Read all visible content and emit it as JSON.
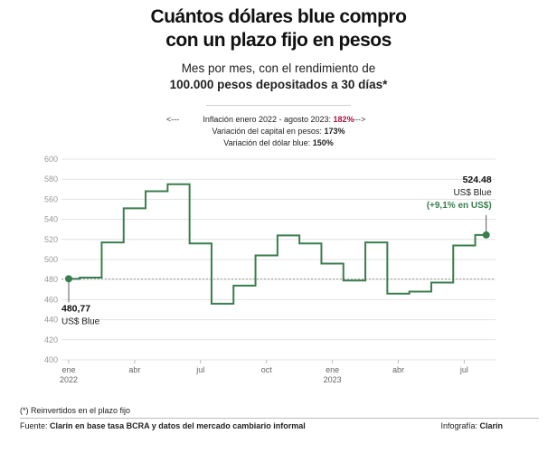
{
  "header": {
    "title_line1": "Cuántos dólares blue compro",
    "title_line2": "con un plazo fijo en pesos",
    "subtitle_line1": "Mes por mes, con el rendimiento de",
    "subtitle_line2": "100.000 pesos depositados a 30 días*"
  },
  "stats": {
    "arrow_left": "<---",
    "arrow_right": "--->",
    "inflation_label": "Inflación enero 2022 - agosto 2023:",
    "inflation_value": "182%",
    "capital_label": "Variación del capital en pesos:",
    "capital_value": "173%",
    "dollar_label": "Variación del dólar blue:",
    "dollar_value": "150%"
  },
  "annotations": {
    "start_value": "480,77",
    "start_unit": "US$ Blue",
    "end_value": "524.48",
    "end_unit": "US$ Blue",
    "end_change": "(+9,1% en US$)"
  },
  "footnote": "(*) Reinvertidos en el plazo fijo",
  "source": {
    "prefix": "Fuente: ",
    "text": "Clarín en base tasa BCRA y datos del mercado cambiario informal"
  },
  "credit": {
    "prefix": "Infografía: ",
    "text": "Clarín"
  },
  "colors": {
    "line": "#3a7d4e",
    "accent_red": "#b0103b",
    "grid": "#e3e3e3",
    "reference": "#888888"
  },
  "chart_data": {
    "type": "line",
    "step": true,
    "x": [
      "2022-01",
      "2022-02",
      "2022-03",
      "2022-04",
      "2022-05",
      "2022-06",
      "2022-07",
      "2022-08",
      "2022-09",
      "2022-10",
      "2022-11",
      "2022-12",
      "2023-01",
      "2023-02",
      "2023-03",
      "2023-04",
      "2023-05",
      "2023-06",
      "2023-07",
      "2023-08"
    ],
    "series": [
      {
        "values": [
          480.77,
          482,
          517,
          551,
          568,
          575,
          516,
          456,
          474,
          504,
          524,
          516,
          496,
          479,
          517,
          466,
          468,
          477,
          514,
          524.48
        ]
      }
    ],
    "reference_line": 480.77,
    "ylim": [
      400,
      600
    ],
    "yticks": [
      "400",
      "420",
      "440",
      "460",
      "480",
      "500",
      "520",
      "540",
      "560",
      "580",
      "600"
    ],
    "xticks": [
      {
        "at": "2022-01",
        "label": "ene",
        "sub": "2022"
      },
      {
        "at": "2022-04",
        "label": "abr",
        "sub": ""
      },
      {
        "at": "2022-07",
        "label": "jul",
        "sub": ""
      },
      {
        "at": "2022-10",
        "label": "oct",
        "sub": ""
      },
      {
        "at": "2023-01",
        "label": "ene",
        "sub": "2023"
      },
      {
        "at": "2023-04",
        "label": "abr",
        "sub": ""
      },
      {
        "at": "2023-07",
        "label": "jul",
        "sub": ""
      }
    ],
    "grid": true,
    "legend": "none"
  }
}
